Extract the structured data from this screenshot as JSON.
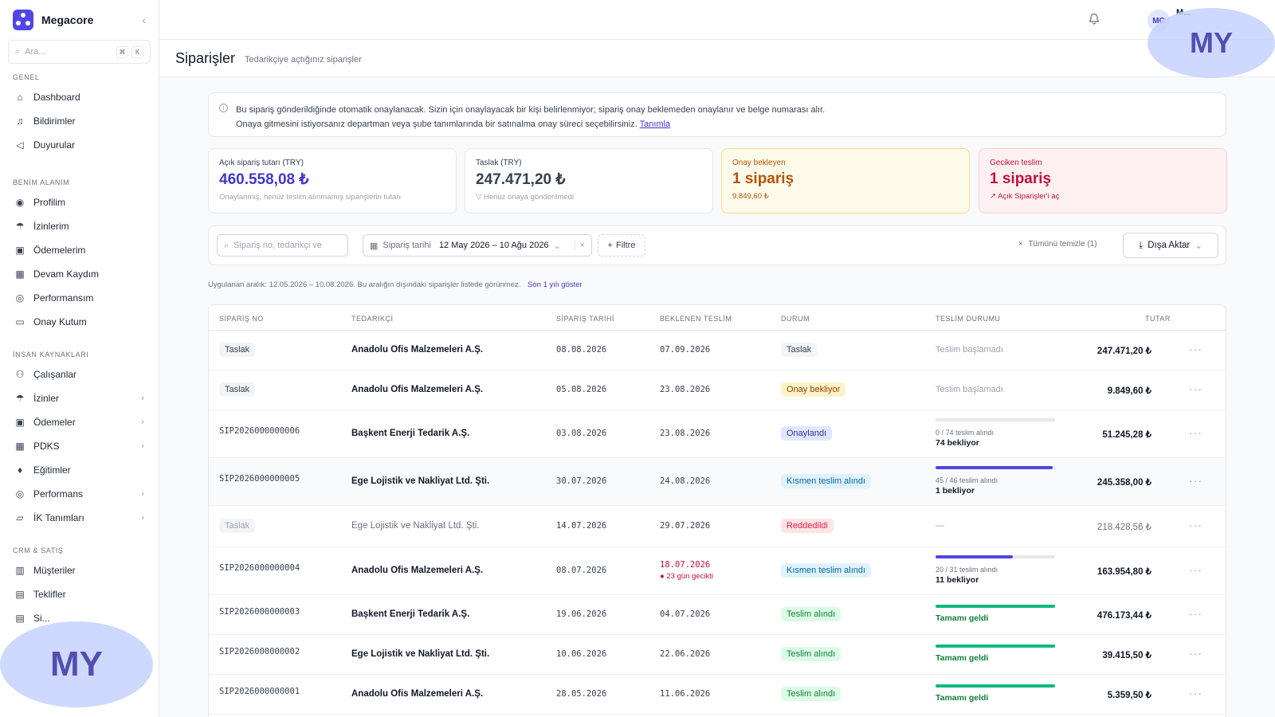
{
  "app": {
    "name": "Megacore",
    "search_placeholder": "Ara...",
    "kbd": [
      "⌘",
      "K"
    ],
    "brand_color": "#4f46e5"
  },
  "sidebar": {
    "sections": [
      {
        "title": "GENEL",
        "items": [
          {
            "label": "Dashboard",
            "icon": "home-icon"
          },
          {
            "label": "Bildirimler",
            "icon": "bell-icon"
          },
          {
            "label": "Duyurular",
            "icon": "megaphone-icon"
          }
        ]
      },
      {
        "title": "BENİM ALANIM",
        "items": [
          {
            "label": "Profilim",
            "icon": "user-circle-icon"
          },
          {
            "label": "İzinlerim",
            "icon": "umbrella-icon"
          },
          {
            "label": "Ödemelerim",
            "icon": "wallet-icon"
          },
          {
            "label": "Devam Kaydım",
            "icon": "calendar-icon"
          },
          {
            "label": "Performansım",
            "icon": "target-icon"
          },
          {
            "label": "Onay Kutum",
            "icon": "inbox-icon"
          }
        ]
      },
      {
        "title": "İNSAN KAYNAKLARI",
        "items": [
          {
            "label": "Çalışanlar",
            "icon": "users-icon"
          },
          {
            "label": "İzinler",
            "icon": "umbrella-icon",
            "chevron": true
          },
          {
            "label": "Ödemeler",
            "icon": "wallet-icon",
            "chevron": true
          },
          {
            "label": "PDKS",
            "icon": "calendar-icon",
            "chevron": true
          },
          {
            "label": "Eğitimler",
            "icon": "graduation-cap-icon"
          },
          {
            "label": "Performans",
            "icon": "target-icon",
            "chevron": true
          },
          {
            "label": "İK Tanımları",
            "icon": "folder-icon",
            "chevron": true
          }
        ]
      },
      {
        "title": "CRM & SATIŞ",
        "items": [
          {
            "label": "Müşteriler",
            "icon": "building-icon"
          },
          {
            "label": "Teklifler",
            "icon": "document-icon"
          },
          {
            "label": "Si...",
            "icon": "document-icon"
          }
        ]
      }
    ]
  },
  "topbar": {
    "avatar": "MC",
    "user_name": "M...",
    "watermark": "MY"
  },
  "page": {
    "title": "Siparişler",
    "subtitle": "Tedarikçiye açtığınız siparişler"
  },
  "info": {
    "line1": "Bu sipariş gönderildiğinde otomatik onaylanacak. Sizin için onaylayacak bir kişi belirlenmiyor; sipariş onay beklemeden onaylanır ve belge numarası alır.",
    "line2": "Onaya gitmesini istiyorsanız departman veya şube tanımlarında bir satınalma onay süreci seçebilirsiniz.",
    "link": "Tanımla"
  },
  "cards": [
    {
      "label": "Açık sipariş tutarı (TRY)",
      "value": "460.558,08 ₺",
      "note": "Onaylanmış, henüz teslim alınmamış siparişlerin tutarı",
      "color": "#4338ca",
      "bg": "#ffffff",
      "border": "#e5e7eb"
    },
    {
      "label": "Taslak (TRY)",
      "value": "247.471,20 ₺",
      "note": "Henüz onaya gönderilmedi",
      "color": "#374151",
      "bg": "#ffffff",
      "border": "#e5e7eb"
    },
    {
      "label": "Onay bekleyen",
      "value": "1 sipariş",
      "note": "9.849,60 ₺",
      "color": "#b45309",
      "bg": "#fefbea",
      "border": "#fcd98b"
    },
    {
      "label": "Geciken teslim",
      "value": "1 sipariş",
      "note": "Açık Siparişler'i aç",
      "color": "#be123c",
      "bg": "#fff1f2",
      "border": "#fecdd3"
    }
  ],
  "filters": {
    "search_placeholder": "Sipariş no, tedarikçi ve",
    "date_label": "Sipariş tarihi",
    "date_value": "12 May 2026 – 10 Ağu 2026",
    "add_filter": "Filtre",
    "clear_all": "Tümünü temizle  (1)",
    "export": "Dışa Aktar"
  },
  "range": {
    "text": "Uygulanan aralık: 12.05.2026 – 10.08.2026. Bu aralığın dışındaki siparişler listede görünmez.",
    "link": "Son 1 yılı göster"
  },
  "table": {
    "headers": [
      "SİPARİŞ NO",
      "TEDARİKÇİ",
      "SİPARİŞ TARİHİ",
      "BEKLENEN TESLİM",
      "DURUM",
      "TESLİM DURUMU",
      "TUTAR"
    ],
    "rows": [
      {
        "no": "Taslak",
        "no_badge": true,
        "supplier": "Anadolu Ofis Malzemeleri A.Ş.",
        "date": "08.08.2026",
        "expected": "07.09.2026",
        "status": "Taslak",
        "status_style": "gray",
        "delivery_text": "Teslim başlamadı",
        "amount": "247.471,20 ₺"
      },
      {
        "no": "Taslak",
        "no_badge": true,
        "supplier": "Anadolu Ofis Malzemeleri A.Ş.",
        "date": "05.08.2026",
        "expected": "23.08.2026",
        "status": "Onay bekliyor",
        "status_style": "yellow",
        "delivery_text": "Teslim başlamadı",
        "amount": "9.849,60 ₺"
      },
      {
        "no": "SIP2026000000006",
        "supplier": "Başkent Enerji Tedarik A.Ş.",
        "date": "03.08.2026",
        "expected": "23.08.2026",
        "status": "Onaylandı",
        "status_style": "indigo",
        "progress": 0,
        "progress_color": "#4f46e5",
        "delivery_small": "0 / 74 teslim alındı",
        "delivery_bold": "74 bekliyor",
        "amount": "51.245,28 ₺"
      },
      {
        "no": "SIP2026000000005",
        "supplier": "Ege Lojistik ve Nakliyat Ltd. Şti.",
        "date": "30.07.2026",
        "expected": "24.08.2026",
        "status": "Kısmen teslim alındı",
        "status_style": "blue",
        "progress": 0.978,
        "progress_color": "#4f46e5",
        "delivery_small": "45 / 46 teslim alındı",
        "delivery_bold": "1 bekliyor",
        "amount": "245.358,00 ₺",
        "highlight": true
      },
      {
        "no": "Taslak",
        "no_badge": true,
        "supplier": "Ege Lojistik ve Nakliyat Ltd. Şti.",
        "date": "14.07.2026",
        "expected": "29.07.2026",
        "status": "Reddedildi",
        "status_style": "red",
        "delivery_text": "—",
        "amount": "218.428,56 ₺",
        "muted": true
      },
      {
        "no": "SIP2026000000004",
        "supplier": "Anadolu Ofis Malzemeleri A.Ş.",
        "date": "08.07.2026",
        "expected": "18.07.2026",
        "expected_late": true,
        "late_note": "23 gün gecikti",
        "status": "Kısmen teslim alındı",
        "status_style": "blue",
        "progress": 0.645,
        "progress_color": "#4f46e5",
        "delivery_small": "20 / 31 teslim alındı",
        "delivery_bold": "11 bekliyor",
        "amount": "163.954,80 ₺"
      },
      {
        "no": "SIP2026000000003",
        "supplier": "Başkent Enerji Tedarik A.Ş.",
        "date": "19.06.2026",
        "expected": "04.07.2026",
        "status": "Teslim alındı",
        "status_style": "green",
        "progress": 1,
        "progress_color": "#10b981",
        "delivery_done": "Tamamı geldi",
        "amount": "476.173,44 ₺"
      },
      {
        "no": "SIP2026000000002",
        "supplier": "Ege Lojistik ve Nakliyat Ltd. Şti.",
        "date": "10.06.2026",
        "expected": "22.06.2026",
        "status": "Teslim alındı",
        "status_style": "green",
        "progress": 1,
        "progress_color": "#10b981",
        "delivery_done": "Tamamı geldi",
        "amount": "39.415,50 ₺"
      },
      {
        "no": "SIP2026000000001",
        "supplier": "Anadolu Ofis Malzemeleri A.Ş.",
        "date": "28.05.2026",
        "expected": "11.06.2026",
        "status": "Teslim alındı",
        "status_style": "green",
        "progress": 1,
        "progress_color": "#10b981",
        "delivery_done": "Tamamı geldi",
        "amount": "5.359,50 ₺"
      }
    ]
  }
}
